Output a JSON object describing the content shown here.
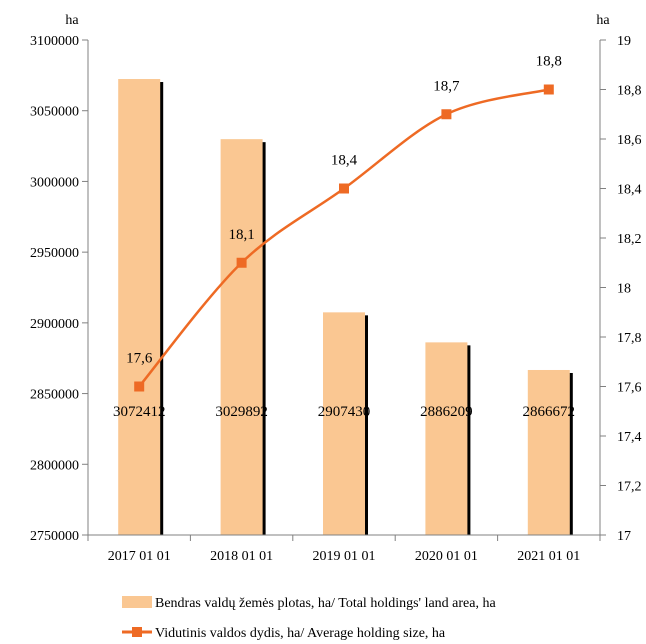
{
  "chart_data": {
    "type": "bar+line",
    "categories": [
      "2017 01 01",
      "2018 01 01",
      "2019 01 01",
      "2020 01 01",
      "2021 01 01"
    ],
    "left_axis": {
      "unit_label": "ha",
      "ylim": [
        2750000,
        3100000
      ],
      "ticks": [
        "2750000",
        "2800000",
        "2850000",
        "2900000",
        "2950000",
        "3000000",
        "3050000",
        "3100000"
      ]
    },
    "right_axis": {
      "unit_label": "ha",
      "ylim": [
        17,
        19
      ],
      "ticks": [
        "17",
        "17,2",
        "17,4",
        "17,6",
        "17,8",
        "18",
        "18,2",
        "18,4",
        "18,6",
        "18,8",
        "19"
      ]
    },
    "series": [
      {
        "name": "Bendras valdų žemės plotas, ha/ Total holdings' land area, ha",
        "type": "bar",
        "axis": "left",
        "color": "#fac792",
        "values": [
          3072412,
          3029892,
          2907430,
          2886209,
          2866672
        ],
        "labels": [
          "3072412",
          "3029892",
          "2907430",
          "2886209",
          "2866672"
        ]
      },
      {
        "name": "Vidutinis valdos dydis, ha/ Average holding size, ha",
        "type": "line",
        "axis": "right",
        "color": "#ee6a24",
        "values": [
          17.6,
          18.1,
          18.4,
          18.7,
          18.8
        ],
        "labels": [
          "17,6",
          "18,1",
          "18,4",
          "18,7",
          "18,8"
        ]
      }
    ],
    "legend_position": "bottom",
    "grid": false
  }
}
